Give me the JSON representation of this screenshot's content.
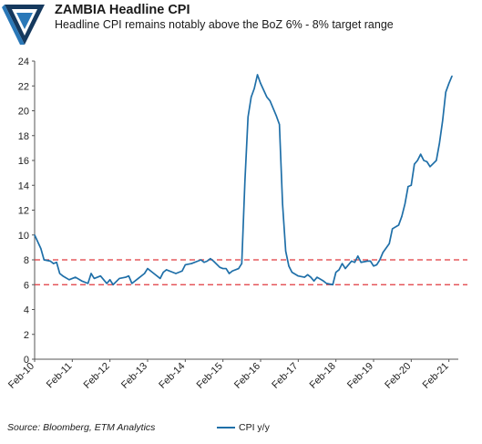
{
  "header": {
    "title": "ZAMBIA Headline CPI",
    "subtitle": "Headline CPI remains notably above the BoZ 6% - 8% target range"
  },
  "footer": {
    "source": "Source: Bloomberg, ETM Analytics"
  },
  "colors": {
    "series": "#1f6fa8",
    "target_band": "#e0393e",
    "logo_dark": "#15395e",
    "logo_light": "#2a78b8"
  },
  "logo": {
    "icon": "etm-triangle-logo-icon"
  },
  "chart_data": {
    "type": "line",
    "ylim": [
      0,
      24
    ],
    "yticks": [
      0,
      2,
      4,
      6,
      8,
      10,
      12,
      14,
      16,
      18,
      20,
      22,
      24
    ],
    "xlim": [
      "2010-02",
      "2021-05"
    ],
    "xticks": [
      "Feb-10",
      "Feb-11",
      "Feb-12",
      "Feb-13",
      "Feb-14",
      "Feb-15",
      "Feb-16",
      "Feb-17",
      "Feb-18",
      "Feb-19",
      "Feb-20",
      "Feb-21"
    ],
    "grid": false,
    "legend": "bottom",
    "reference_lines": [
      {
        "y": 6,
        "style": "dashed"
      },
      {
        "y": 8,
        "style": "dashed"
      }
    ],
    "series": [
      {
        "name": "CPI y/y",
        "points": [
          [
            "2010-02",
            10.0
          ],
          [
            "2010-04",
            8.9
          ],
          [
            "2010-05",
            8.0
          ],
          [
            "2010-07",
            7.9
          ],
          [
            "2010-08",
            7.7
          ],
          [
            "2010-09",
            7.8
          ],
          [
            "2010-10",
            6.9
          ],
          [
            "2010-11",
            6.7
          ],
          [
            "2011-01",
            6.4
          ],
          [
            "2011-03",
            6.6
          ],
          [
            "2011-05",
            6.3
          ],
          [
            "2011-07",
            6.1
          ],
          [
            "2011-08",
            6.9
          ],
          [
            "2011-09",
            6.5
          ],
          [
            "2011-11",
            6.7
          ],
          [
            "2012-01",
            6.1
          ],
          [
            "2012-02",
            6.4
          ],
          [
            "2012-03",
            6.0
          ],
          [
            "2012-05",
            6.5
          ],
          [
            "2012-07",
            6.6
          ],
          [
            "2012-08",
            6.7
          ],
          [
            "2012-09",
            6.1
          ],
          [
            "2012-11",
            6.5
          ],
          [
            "2013-01",
            6.9
          ],
          [
            "2013-02",
            7.3
          ],
          [
            "2013-04",
            6.9
          ],
          [
            "2013-06",
            6.5
          ],
          [
            "2013-07",
            7.0
          ],
          [
            "2013-08",
            7.2
          ],
          [
            "2013-10",
            7.0
          ],
          [
            "2013-11",
            6.9
          ],
          [
            "2014-01",
            7.1
          ],
          [
            "2014-02",
            7.6
          ],
          [
            "2014-04",
            7.7
          ],
          [
            "2014-06",
            7.9
          ],
          [
            "2014-07",
            8.0
          ],
          [
            "2014-08",
            7.8
          ],
          [
            "2014-09",
            7.9
          ],
          [
            "2014-10",
            8.1
          ],
          [
            "2014-11",
            7.9
          ],
          [
            "2015-01",
            7.4
          ],
          [
            "2015-02",
            7.3
          ],
          [
            "2015-03",
            7.3
          ],
          [
            "2015-04",
            6.9
          ],
          [
            "2015-05",
            7.1
          ],
          [
            "2015-07",
            7.3
          ],
          [
            "2015-08",
            7.7
          ],
          [
            "2015-09",
            14.3
          ],
          [
            "2015-10",
            19.5
          ],
          [
            "2015-11",
            21.1
          ],
          [
            "2015-12",
            21.8
          ],
          [
            "2016-01",
            22.9
          ],
          [
            "2016-02",
            22.2
          ],
          [
            "2016-04",
            21.1
          ],
          [
            "2016-05",
            20.8
          ],
          [
            "2016-07",
            19.6
          ],
          [
            "2016-08",
            18.9
          ],
          [
            "2016-09",
            12.5
          ],
          [
            "2016-10",
            8.7
          ],
          [
            "2016-11",
            7.5
          ],
          [
            "2016-12",
            7.0
          ],
          [
            "2017-02",
            6.7
          ],
          [
            "2017-04",
            6.6
          ],
          [
            "2017-05",
            6.8
          ],
          [
            "2017-06",
            6.6
          ],
          [
            "2017-07",
            6.3
          ],
          [
            "2017-08",
            6.6
          ],
          [
            "2017-10",
            6.3
          ],
          [
            "2017-11",
            6.1
          ],
          [
            "2018-01",
            6.0
          ],
          [
            "2018-02",
            7.0
          ],
          [
            "2018-03",
            7.2
          ],
          [
            "2018-04",
            7.7
          ],
          [
            "2018-05",
            7.3
          ],
          [
            "2018-07",
            7.9
          ],
          [
            "2018-08",
            7.8
          ],
          [
            "2018-09",
            8.3
          ],
          [
            "2018-10",
            7.8
          ],
          [
            "2018-12",
            7.9
          ],
          [
            "2019-01",
            7.9
          ],
          [
            "2019-02",
            7.5
          ],
          [
            "2019-03",
            7.6
          ],
          [
            "2019-04",
            8.0
          ],
          [
            "2019-05",
            8.6
          ],
          [
            "2019-07",
            9.3
          ],
          [
            "2019-08",
            10.5
          ],
          [
            "2019-10",
            10.8
          ],
          [
            "2019-11",
            11.5
          ],
          [
            "2019-12",
            12.5
          ],
          [
            "2020-01",
            13.9
          ],
          [
            "2020-02",
            14.0
          ],
          [
            "2020-03",
            15.7
          ],
          [
            "2020-04",
            16.0
          ],
          [
            "2020-05",
            16.5
          ],
          [
            "2020-06",
            16.0
          ],
          [
            "2020-07",
            15.9
          ],
          [
            "2020-08",
            15.5
          ],
          [
            "2020-10",
            16.0
          ],
          [
            "2020-11",
            17.4
          ],
          [
            "2020-12",
            19.2
          ],
          [
            "2021-01",
            21.5
          ],
          [
            "2021-02",
            22.2
          ],
          [
            "2021-03",
            22.8
          ]
        ]
      }
    ]
  }
}
